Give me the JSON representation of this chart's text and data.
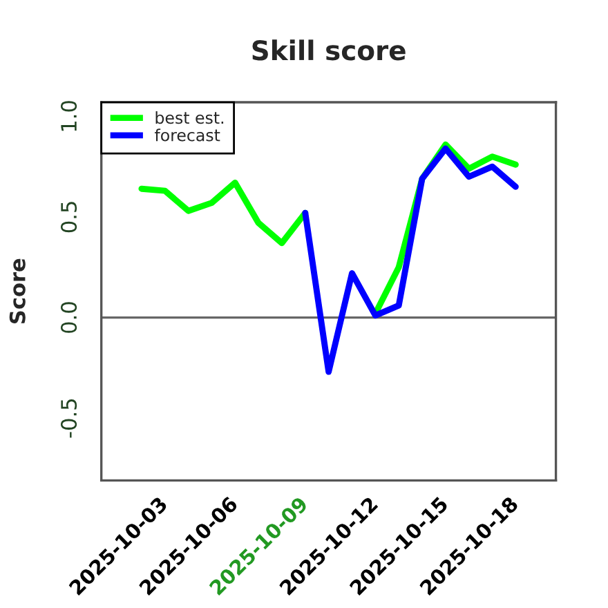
{
  "chart_data": {
    "type": "line",
    "title": "Skill score",
    "ylabel": "Score",
    "x": [
      "2025-10-02",
      "2025-10-03",
      "2025-10-04",
      "2025-10-05",
      "2025-10-06",
      "2025-10-07",
      "2025-10-08",
      "2025-10-09",
      "2025-10-10",
      "2025-10-11",
      "2025-10-12",
      "2025-10-13",
      "2025-10-14",
      "2025-10-15",
      "2025-10-16",
      "2025-10-17",
      "2025-10-18"
    ],
    "series": [
      {
        "name": "best est.",
        "color": "#00ff00",
        "values": [
          0.64,
          0.63,
          0.53,
          0.57,
          0.67,
          0.47,
          0.37,
          0.52,
          null,
          null,
          0.02,
          0.25,
          0.69,
          0.86,
          0.74,
          0.8,
          0.76
        ]
      },
      {
        "name": "forecast",
        "color": "#0000ff",
        "values": [
          null,
          null,
          null,
          null,
          null,
          null,
          null,
          0.52,
          -0.27,
          0.22,
          0.01,
          0.06,
          0.69,
          0.84,
          0.7,
          0.75,
          0.65
        ]
      }
    ],
    "xlim": [
      "2025-09-30T06:43",
      "2025-10-19T17:17"
    ],
    "xticks": [
      "2025-10-03",
      "2025-10-06",
      "2025-10-09",
      "2025-10-12",
      "2025-10-15",
      "2025-10-18"
    ],
    "ylim": [
      -0.81,
      1.07
    ],
    "yticks": [
      {
        "value": -0.5,
        "label": "-0.5"
      },
      {
        "value": 0,
        "label": "0.0"
      },
      {
        "value": 0.5,
        "label": "0.5"
      },
      {
        "value": 1,
        "label": "1.0"
      }
    ],
    "ref_lines": [
      {
        "axis": "y",
        "value": 0,
        "color": "#666666"
      }
    ],
    "legend": "top left",
    "grid": false
  }
}
